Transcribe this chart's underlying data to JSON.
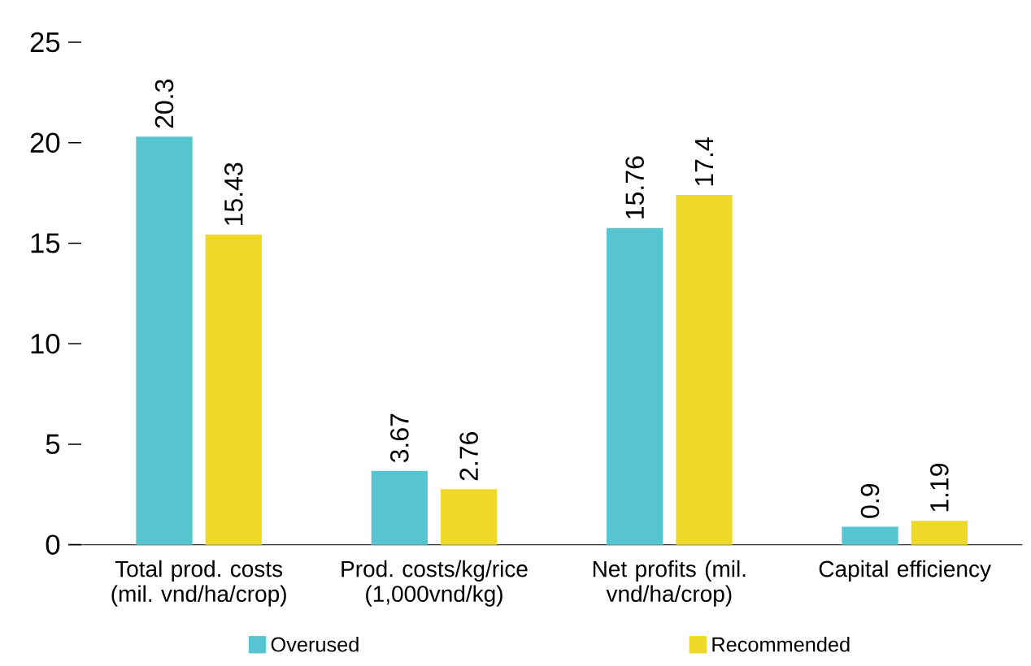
{
  "chart_data": {
    "type": "bar",
    "categories": [
      "Total prod. costs (mil. vnd/ha/crop)",
      "Prod. costs/kg/rice (1,000vnd/kg)",
      "Net profits (mil. vnd/ha/crop)",
      "Capital efficiency"
    ],
    "series": [
      {
        "name": "Overused",
        "color": "#56c5d0",
        "values": [
          20.3,
          3.67,
          15.76,
          0.9
        ]
      },
      {
        "name": "Recommended",
        "color": "#eed82a",
        "values": [
          15.43,
          2.76,
          17.4,
          1.19
        ]
      }
    ],
    "ylim": [
      0,
      25
    ],
    "yticks": [
      0,
      5,
      10,
      15,
      20,
      25
    ],
    "data_labels": true,
    "legend": "bottom",
    "grid": false
  }
}
